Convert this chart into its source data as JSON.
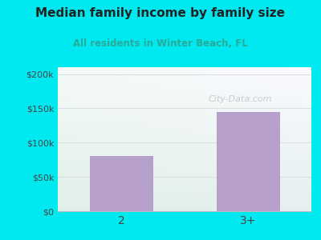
{
  "categories": [
    "2",
    "3+"
  ],
  "values": [
    80000,
    145000
  ],
  "bar_color": "#b8a0cc",
  "title": "Median family income by family size",
  "subtitle": "All residents in Winter Beach, FL",
  "title_color": "#222222",
  "subtitle_color": "#2aaa99",
  "background_color": "#00e8f0",
  "yticks": [
    0,
    50000,
    100000,
    150000,
    200000
  ],
  "ytick_labels": [
    "$0",
    "$50k",
    "$100k",
    "$150k",
    "$200k"
  ],
  "ylim": [
    0,
    210000
  ],
  "watermark": "City-Data.com",
  "tick_color": "#444444",
  "grid_color": "#dddddd",
  "plot_bg_color_topleft": "#e8f5f0",
  "plot_bg_color_topright": "#f0f8f8",
  "plot_bg_color_bottomleft": "#d0ead8",
  "plot_bg_color_bottomright": "#e0f0ee"
}
